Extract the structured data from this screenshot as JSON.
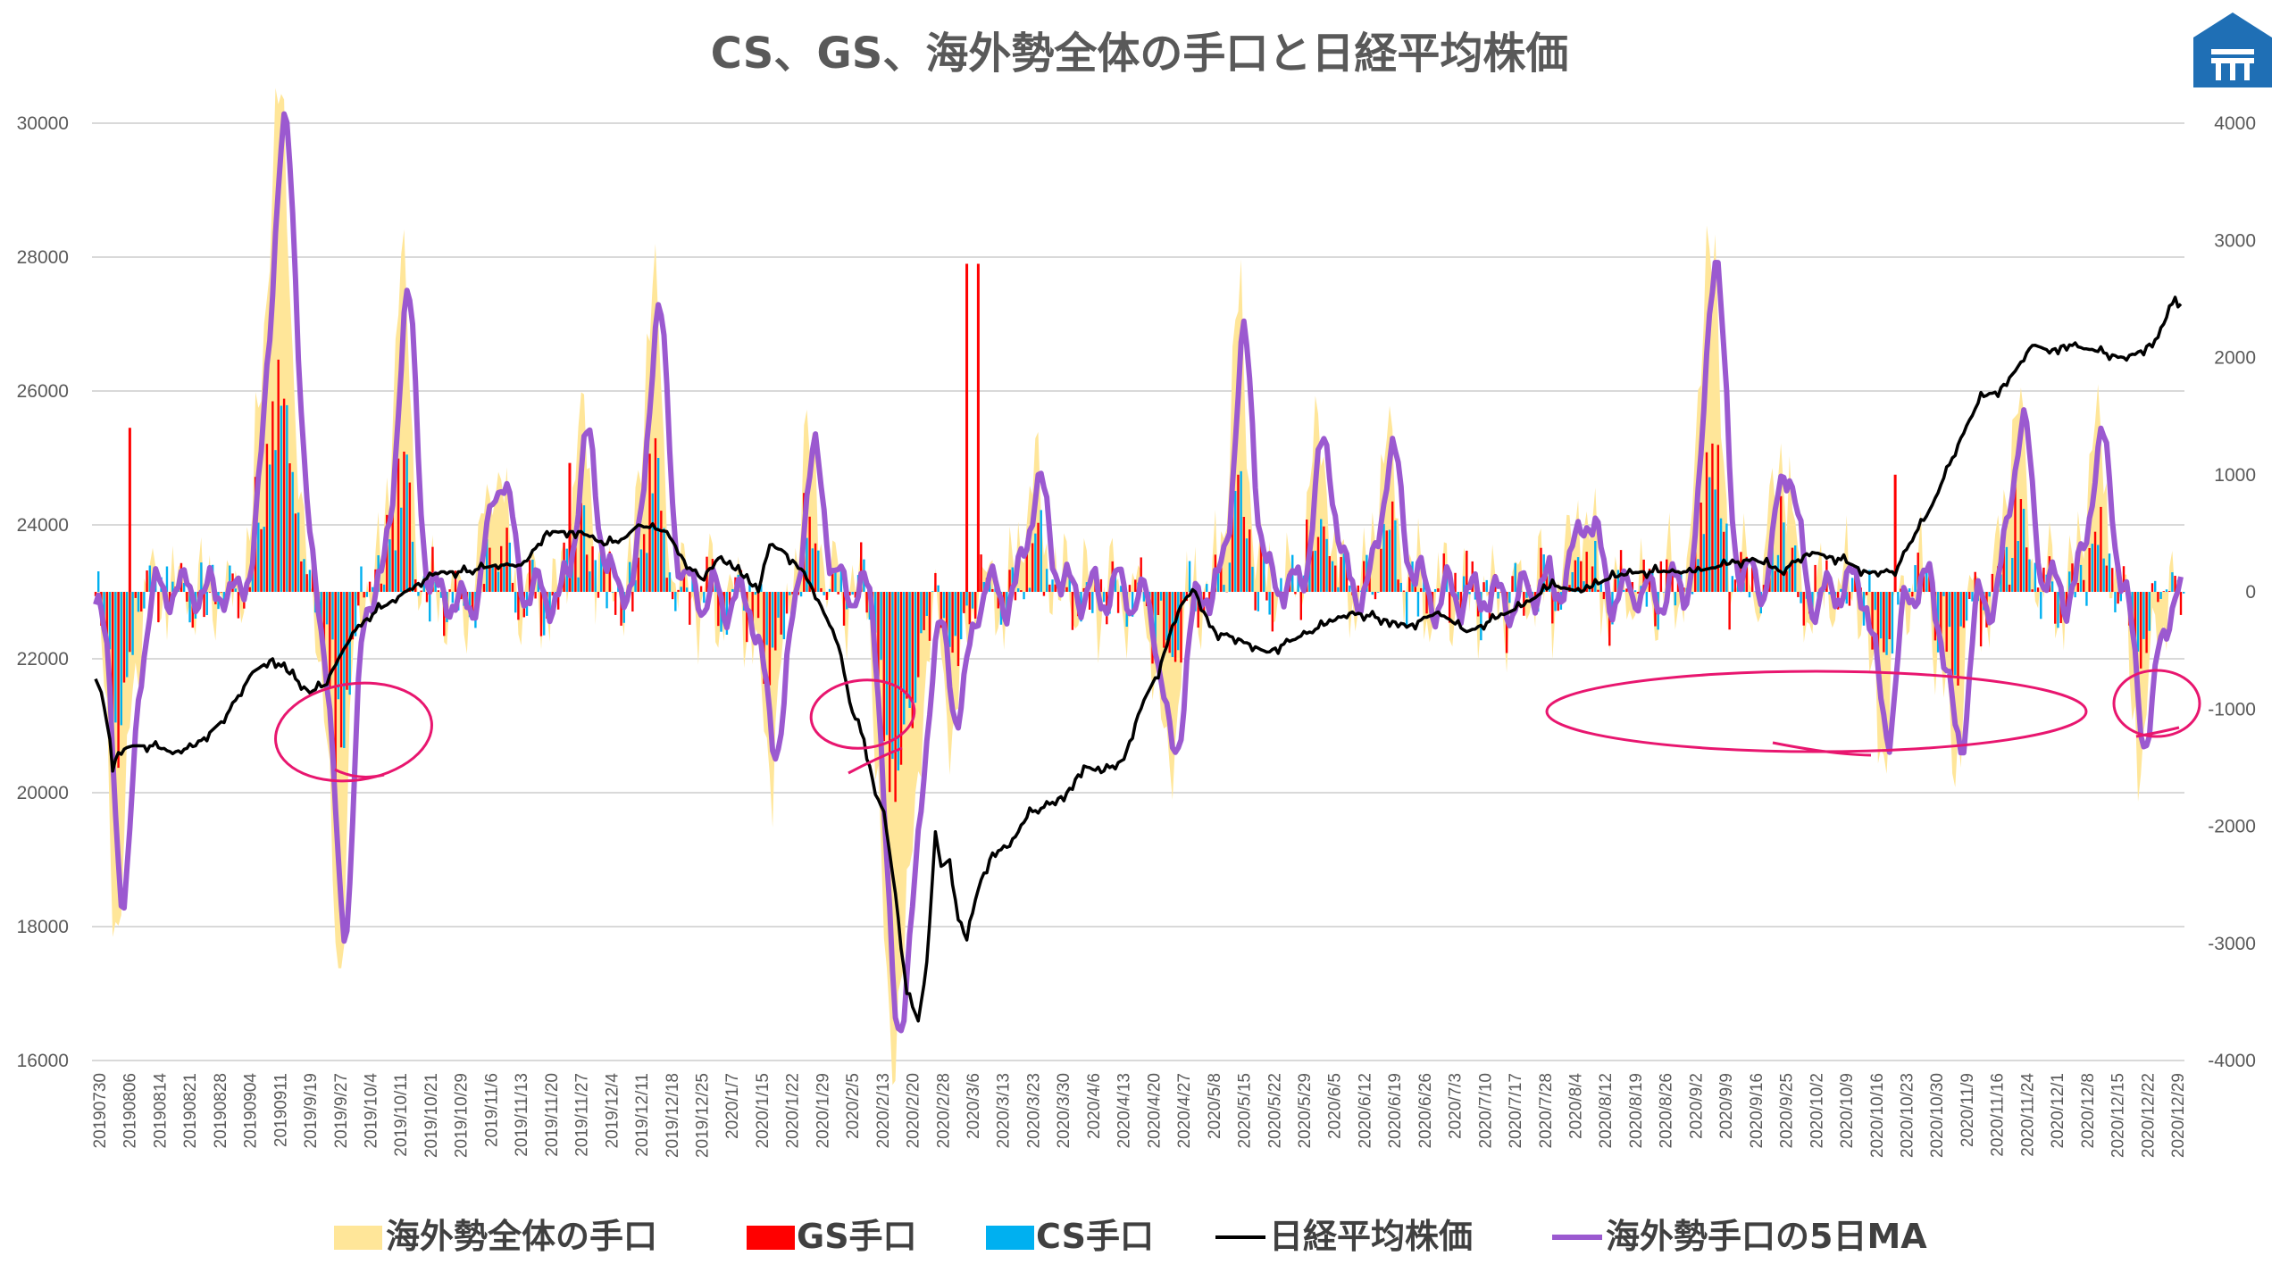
{
  "title": "CS、GS、海外勢全体の手口と日経平均株価",
  "colors": {
    "foreign_total": "#FFE699",
    "gs": "#FF0000",
    "cs": "#00B0F0",
    "nikkei": "#000000",
    "ma5": "#9B59D0",
    "annotation": "#E8166F",
    "logo": "#1F6FB5"
  },
  "icons": {
    "logo": "building-logo-icon"
  },
  "chart_data": {
    "type": "bar",
    "title": "CS、GS、海外勢全体の手口と日経平均株価",
    "y_left": {
      "lim": [
        16000,
        30000
      ],
      "ticks": [
        "16000",
        "18000",
        "20000",
        "22000",
        "24000",
        "26000",
        "28000",
        "30000"
      ]
    },
    "y_right": {
      "lim": [
        -4000,
        4000
      ],
      "ticks": [
        "-4000",
        "-3000",
        "-2000",
        "-1000",
        "0",
        "1000",
        "2000",
        "3000",
        "4000"
      ]
    },
    "grid": true,
    "legend_position": "bottom",
    "x_ticks": [
      "20190730",
      "20190806",
      "20190814",
      "20190821",
      "20190828",
      "20190904",
      "20190911",
      "2019/9/19",
      "2019/9/27",
      "2019/10/4",
      "2019/10/11",
      "2019/10/21",
      "2019/10/29",
      "2019/11/6",
      "2019/11/13",
      "2019/11/20",
      "2019/11/27",
      "2019/12/4",
      "2019/12/11",
      "2019/12/18",
      "2019/12/25",
      "2020/1/7",
      "2020/1/15",
      "2020/1/22",
      "2020/1/29",
      "2020/2/5",
      "2020/2/13",
      "2020/2/20",
      "2020/2/28",
      "2020/3/6",
      "2020/3/13",
      "2020/3/23",
      "2020/3/30",
      "2020/4/6",
      "2020/4/13",
      "2020/4/20",
      "2020/4/27",
      "2020/5/8",
      "2020/5/15",
      "2020/5/22",
      "2020/5/29",
      "2020/6/5",
      "2020/6/12",
      "2020/6/19",
      "2020/6/26",
      "2020/7/3",
      "2020/7/10",
      "2020/7/17",
      "2020/7/28",
      "2020/8/4",
      "2020/8/12",
      "2020/8/19",
      "2020/8/26",
      "2020/9/2",
      "2020/9/9",
      "2020/9/16",
      "2020/9/25",
      "2020/10/2",
      "2020/10/9",
      "2020/10/16",
      "2020/10/23",
      "2020/10/30",
      "2020/11/9",
      "2020/11/16",
      "2020/11/24",
      "2020/12/1",
      "2020/12/8",
      "2020/12/15",
      "2020/12/22",
      "2020/12/29"
    ],
    "nikkei_keyframes": [
      [
        0,
        21700
      ],
      [
        2,
        21500
      ],
      [
        5,
        20800
      ],
      [
        6,
        20400
      ],
      [
        8,
        20600
      ],
      [
        12,
        20700
      ],
      [
        20,
        20700
      ],
      [
        27,
        20600
      ],
      [
        35,
        20700
      ],
      [
        45,
        21100
      ],
      [
        55,
        21800
      ],
      [
        62,
        22000
      ],
      [
        70,
        21700
      ],
      [
        75,
        21500
      ],
      [
        80,
        21600
      ],
      [
        85,
        22000
      ],
      [
        92,
        22500
      ],
      [
        98,
        22700
      ],
      [
        105,
        22900
      ],
      [
        112,
        23100
      ],
      [
        120,
        23300
      ],
      [
        130,
        23300
      ],
      [
        140,
        23400
      ],
      [
        150,
        23400
      ],
      [
        158,
        23900
      ],
      [
        170,
        23900
      ],
      [
        178,
        23700
      ],
      [
        185,
        23800
      ],
      [
        190,
        24000
      ],
      [
        200,
        23900
      ],
      [
        207,
        23400
      ],
      [
        212,
        23200
      ],
      [
        218,
        23500
      ],
      [
        225,
        23300
      ],
      [
        232,
        23000
      ],
      [
        236,
        23700
      ],
      [
        241,
        23600
      ],
      [
        248,
        23300
      ],
      [
        255,
        22700
      ],
      [
        260,
        22200
      ],
      [
        265,
        21200
      ],
      [
        269,
        20800
      ],
      [
        273,
        20000
      ],
      [
        276,
        19700
      ],
      [
        280,
        18500
      ],
      [
        284,
        17000
      ],
      [
        288,
        16600
      ],
      [
        291,
        17400
      ],
      [
        294,
        19400
      ],
      [
        296,
        18900
      ],
      [
        299,
        19000
      ],
      [
        302,
        18100
      ],
      [
        305,
        17800
      ],
      [
        309,
        18600
      ],
      [
        314,
        19100
      ],
      [
        320,
        19200
      ],
      [
        327,
        19700
      ],
      [
        333,
        19800
      ],
      [
        340,
        20000
      ],
      [
        346,
        20400
      ],
      [
        352,
        20300
      ],
      [
        360,
        20500
      ],
      [
        366,
        21300
      ],
      [
        372,
        21800
      ],
      [
        377,
        22500
      ],
      [
        381,
        22900
      ],
      [
        385,
        23000
      ],
      [
        388,
        22700
      ],
      [
        392,
        22400
      ],
      [
        400,
        22300
      ],
      [
        410,
        22100
      ],
      [
        420,
        22300
      ],
      [
        430,
        22500
      ],
      [
        440,
        22700
      ],
      [
        450,
        22600
      ],
      [
        460,
        22500
      ],
      [
        470,
        22700
      ],
      [
        480,
        22400
      ],
      [
        490,
        22600
      ],
      [
        500,
        22800
      ],
      [
        510,
        23100
      ],
      [
        520,
        23000
      ],
      [
        530,
        23200
      ],
      [
        540,
        23300
      ],
      [
        550,
        23300
      ],
      [
        560,
        23300
      ],
      [
        570,
        23400
      ],
      [
        580,
        23500
      ],
      [
        590,
        23300
      ],
      [
        600,
        23600
      ],
      [
        610,
        23500
      ],
      [
        620,
        23300
      ],
      [
        630,
        23300
      ],
      [
        636,
        23800
      ],
      [
        642,
        24200
      ],
      [
        648,
        24800
      ],
      [
        654,
        25400
      ],
      [
        660,
        25900
      ],
      [
        666,
        26000
      ],
      [
        672,
        26300
      ],
      [
        678,
        26700
      ],
      [
        684,
        26600
      ],
      [
        690,
        26700
      ],
      [
        700,
        26600
      ],
      [
        710,
        26500
      ],
      [
        716,
        26600
      ],
      [
        722,
        26800
      ],
      [
        728,
        27400
      ],
      [
        730,
        27300
      ]
    ],
    "series": [
      {
        "name": "海外勢全体の手口"
      },
      {
        "name": "GS手口"
      },
      {
        "name": "CS手口"
      },
      {
        "name": "日経平均株価"
      },
      {
        "name": "海外勢手口の5日MA"
      }
    ]
  }
}
